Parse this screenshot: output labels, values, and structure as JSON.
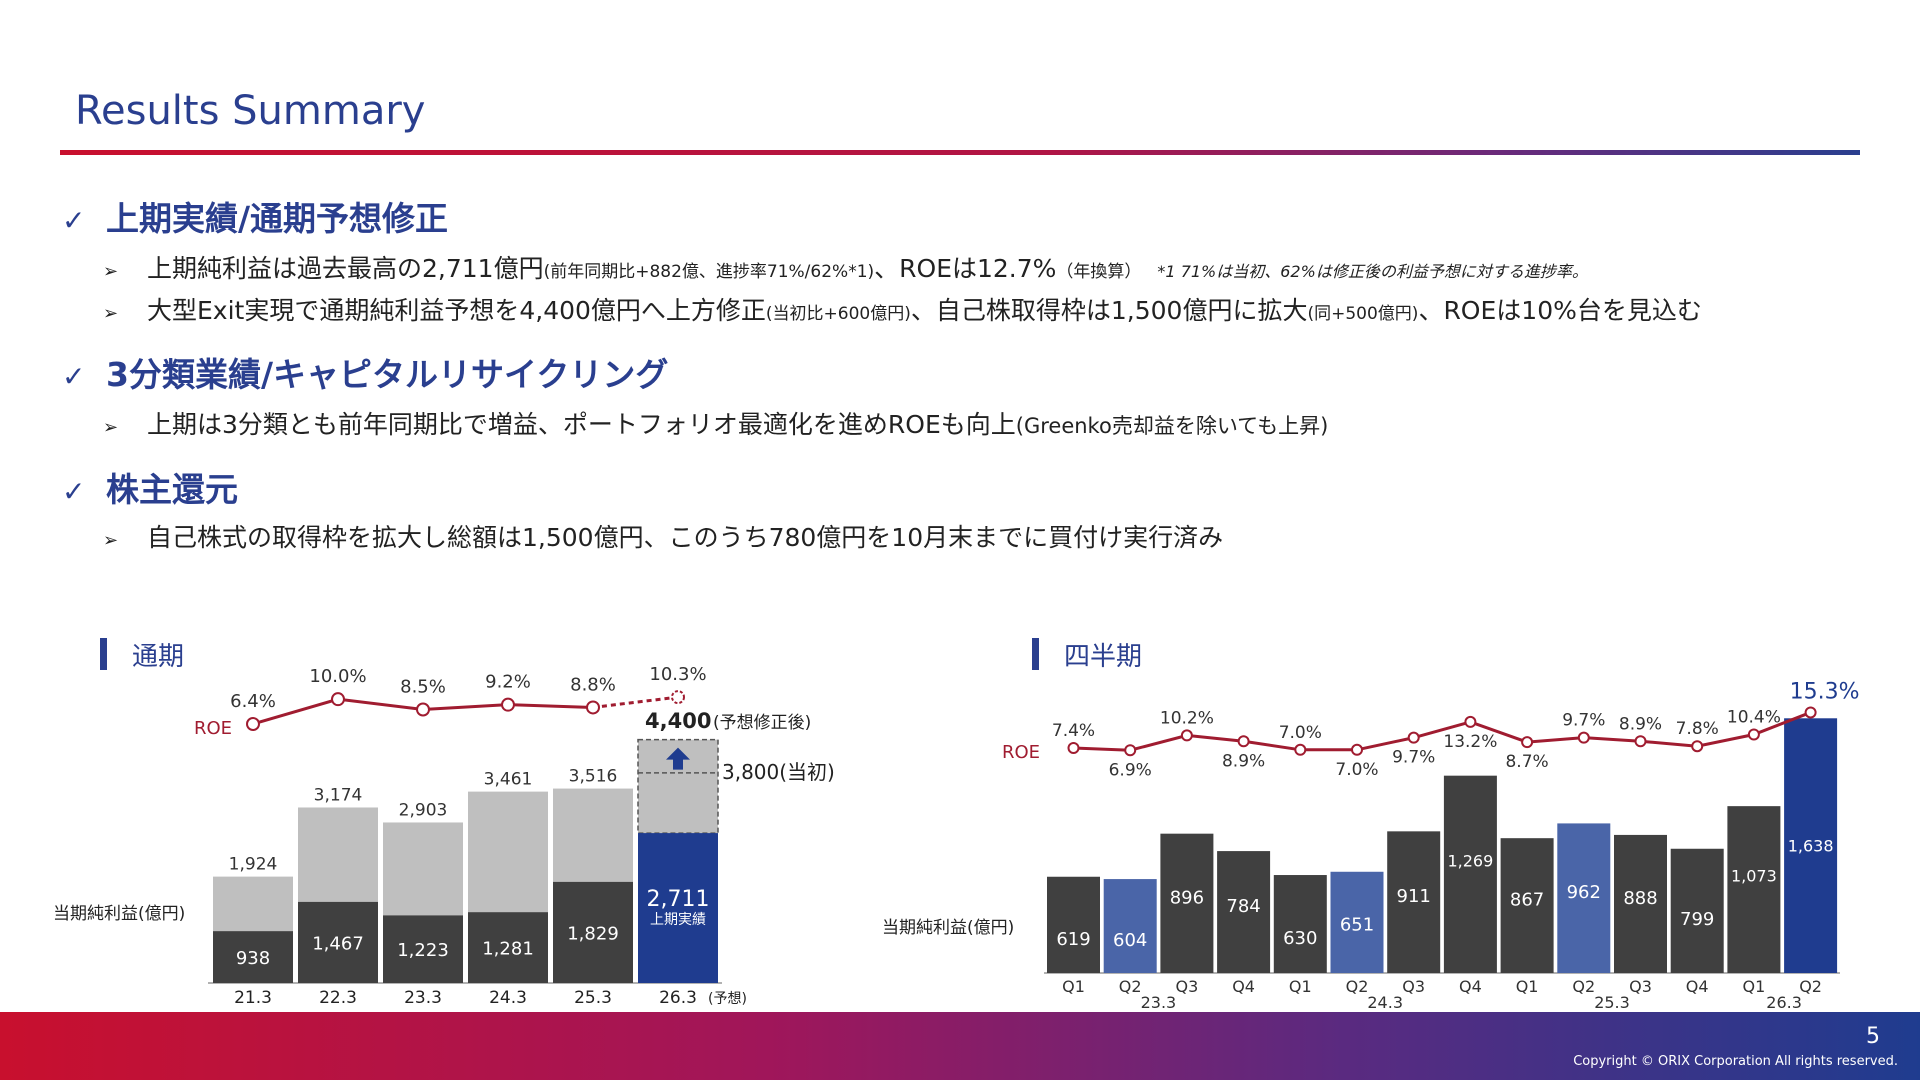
{
  "title": "Results Summary",
  "sections": [
    {
      "check": "✓",
      "heading": "上期実績/通期予想修正",
      "bullets": [
        {
          "parts": [
            "上期純利益は過去最高の2,711億円",
            "(前年同期比+882億、進捗率71%/62%*1)",
            "、ROEは12.7%",
            "（年換算）"
          ],
          "note": "*1 71%は当初、62%は修正後の利益予想に対する進捗率。"
        },
        {
          "parts": [
            "大型Exit実現で通期純利益予想を4,400億円へ上方修正",
            "(当初比+600億円)",
            "、自己株取得枠は1,500億円に拡大",
            "(同+500億円)",
            "、ROEは10%台を見込む"
          ]
        }
      ]
    },
    {
      "check": "✓",
      "heading": "3分類業績/キャピタルリサイクリング",
      "bullets": [
        {
          "parts": [
            "上期は3分類とも前年同期比で増益、ポートフォリオ最適化を進めROEも向上",
            "(Greenko売却益を除いても上昇)"
          ]
        }
      ]
    },
    {
      "check": "✓",
      "heading": "株主還元",
      "bullets": [
        {
          "parts": [
            "自己株式の取得枠を拡大し総額は1,500億円、このうち780億円を10月末までに買付け実行済み"
          ]
        }
      ]
    }
  ],
  "bullet_icon": "arrowhead-bullet-icon",
  "chart_data": [
    {
      "type": "bar",
      "title": "通期",
      "ylabel": "当期純利益(億円)",
      "roe_label": "ROE",
      "categories": [
        "21.3",
        "22.3",
        "23.3",
        "24.3",
        "25.3",
        "26.3"
      ],
      "category_suffix_last": "(予想)",
      "first_half": [
        938,
        1467,
        1223,
        1281,
        1829,
        2711
      ],
      "full_year": [
        1924,
        3174,
        2903,
        3461,
        3516,
        4400
      ],
      "full_year_labels": [
        "1,924",
        "3,174",
        "2,903",
        "3,461",
        "3,516"
      ],
      "first_half_labels": [
        "938",
        "1,467",
        "1,223",
        "1,281",
        "1,829",
        "2,711"
      ],
      "current_sublabel": "上期実績",
      "forecast_revised": {
        "value": 4400,
        "label": "4,400",
        "note": "(予想修正後)"
      },
      "forecast_initial": {
        "value": 3800,
        "label": "3,800(当初)"
      },
      "roe": [
        6.4,
        10.0,
        8.5,
        9.2,
        8.8,
        10.3
      ],
      "roe_labels": [
        "6.4%",
        "10.0%",
        "8.5%",
        "9.2%",
        "8.8%",
        "10.3%"
      ],
      "colors": {
        "first_half": "#404040",
        "second_half": "#bfbfbf",
        "current": "#1f3c8f",
        "roe": "#a01c30"
      }
    },
    {
      "type": "bar",
      "title": "四半期",
      "ylabel": "当期純利益(億円)",
      "roe_label": "ROE",
      "quarters": [
        "Q1",
        "Q2",
        "Q3",
        "Q4",
        "Q1",
        "Q2",
        "Q3",
        "Q4",
        "Q1",
        "Q2",
        "Q3",
        "Q4",
        "Q1",
        "Q2"
      ],
      "years": [
        "23.3",
        "24.3",
        "25.3",
        "26.3"
      ],
      "values": [
        619,
        604,
        896,
        784,
        630,
        651,
        911,
        1269,
        867,
        962,
        888,
        799,
        1073,
        1638
      ],
      "value_labels": [
        "619",
        "604",
        "896",
        "784",
        "630",
        "651",
        "911",
        "1,269",
        "867",
        "962",
        "888",
        "799",
        "1,073",
        "1,638"
      ],
      "roe": [
        7.4,
        6.9,
        10.2,
        8.9,
        7.0,
        7.0,
        9.7,
        13.2,
        8.7,
        9.7,
        8.9,
        7.8,
        10.4,
        15.3
      ],
      "roe_labels": [
        "7.4%",
        "6.9%",
        "10.2%",
        "8.9%",
        "7.0%",
        "7.0%",
        "9.7%",
        "13.2%",
        "8.7%",
        "9.7%",
        "8.9%",
        "7.8%",
        "10.4%",
        "15.3%"
      ],
      "colors": {
        "bar": "#404040",
        "q2_past": "#4a65a8",
        "current": "#1f3c8f",
        "roe": "#a01c30"
      }
    }
  ],
  "footer": {
    "page": "5",
    "copyright": "Copyright © ORIX Corporation All rights reserved."
  }
}
